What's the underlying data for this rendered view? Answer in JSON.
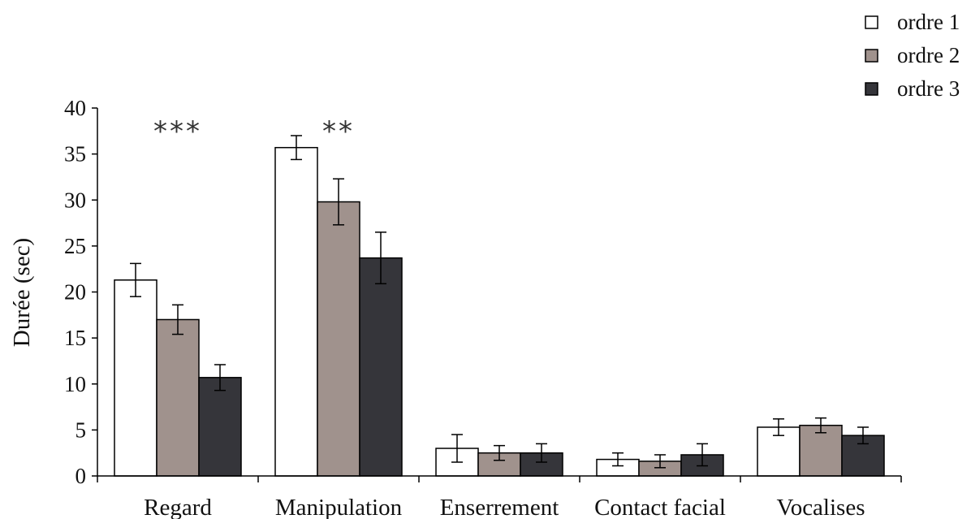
{
  "chart_data": {
    "type": "bar",
    "title": "",
    "xlabel": "",
    "ylabel": "Durée (sec)",
    "ylim": [
      0,
      40
    ],
    "yticks": [
      0,
      5,
      10,
      15,
      20,
      25,
      30,
      35,
      40
    ],
    "grid": false,
    "legend_position": "top-right",
    "categories": [
      "Regard",
      "Manipulation",
      "Enserrement",
      "Contact facial",
      "Vocalises"
    ],
    "series": [
      {
        "name": "ordre 1",
        "color": "#ffffff",
        "values": [
          21.3,
          35.7,
          3.0,
          1.8,
          5.3
        ],
        "errors": [
          1.8,
          1.3,
          1.5,
          0.7,
          0.9
        ]
      },
      {
        "name": "ordre 2",
        "color": "#a0928d",
        "values": [
          17.0,
          29.8,
          2.5,
          1.6,
          5.5
        ],
        "errors": [
          1.6,
          2.5,
          0.8,
          0.7,
          0.8
        ]
      },
      {
        "name": "ordre 3",
        "color": "#35353a",
        "values": [
          10.7,
          23.7,
          2.5,
          2.3,
          4.4
        ],
        "errors": [
          1.4,
          2.8,
          1.0,
          1.2,
          0.9
        ]
      }
    ],
    "annotations": [
      {
        "category": "Regard",
        "text": "***"
      },
      {
        "category": "Manipulation",
        "text": "**"
      }
    ]
  }
}
